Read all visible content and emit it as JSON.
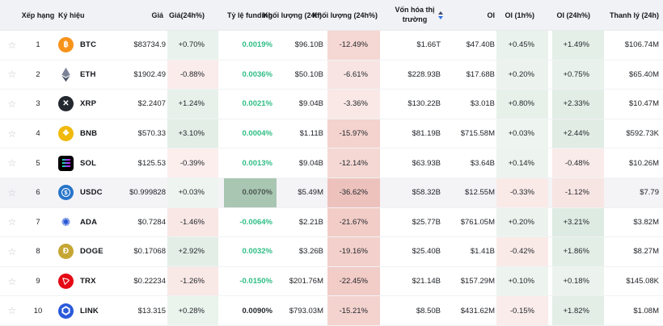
{
  "colors": {
    "green_text": "#2ebd85",
    "header_bg": "#f0f2f5",
    "highlight_row_bg": "#f4f4f7",
    "usdc_funding_bg": "#a8c6b2",
    "usdc_funding_text": "#4d574f",
    "sort_up_arrow": "#3e4a6d",
    "sort_down_arrow": "#2d6ee9",
    "star_icon": "#c3c6cb"
  },
  "icons": {
    "star": {
      "glyph": "☆"
    },
    "btc": {
      "shape": "circle",
      "bg": "#f7931a",
      "fg": "#ffffff",
      "glyph": "฿"
    },
    "eth": {
      "shape": "eth"
    },
    "xrp": {
      "shape": "circle",
      "bg": "#23292f",
      "fg": "#ffffff",
      "glyph": "✕"
    },
    "bnb": {
      "shape": "circle",
      "bg": "#f0b90b",
      "fg": "#ffffff",
      "glyph": "❖"
    },
    "sol": {
      "shape": "sol",
      "bg": "#000000"
    },
    "usdc": {
      "shape": "usdc",
      "bg": "#2775ca"
    },
    "ada": {
      "shape": "ada",
      "fg": "#2a57d3",
      "glyph": "✺"
    },
    "doge": {
      "shape": "circle",
      "bg": "#c6a633",
      "fg": "#ffffff",
      "glyph": "Ð"
    },
    "trx": {
      "shape": "trx",
      "bg": "#e50915"
    },
    "link": {
      "shape": "link",
      "bg": "#2a5ada"
    }
  },
  "table": {
    "headers": {
      "rank": "Xếp hạng",
      "symbol": "Ký hiệu",
      "price": "Giá",
      "chg24h": "Giá(24h%)",
      "funding": "Tỷ lệ funding",
      "vol24h": "Khối lượng (24h)",
      "vol24h_pct": "Khối lượng (24h%)",
      "mcap": "Vốn hóa thị trường",
      "oi": "OI",
      "oi1h": "OI (1h%)",
      "oi24h": "OI (24h%)",
      "liq24h": "Thanh lý (24h)"
    },
    "rows": [
      {
        "rank": "1",
        "coin": "btc",
        "symbol": "BTC",
        "price": "$83734.9",
        "chg": {
          "v": "+0.70%",
          "bg": "#e9f2ec"
        },
        "funding": {
          "v": "0.0019%",
          "style": "green"
        },
        "vol": "$96.10B",
        "volp": {
          "v": "-12.49%",
          "bg": "#f5d7d3"
        },
        "mcap": "$1.66T",
        "oi": "$47.40B",
        "oi1": {
          "v": "+0.45%",
          "bg": "#eaf2ed"
        },
        "oi24": {
          "v": "+1.49%",
          "bg": "#e4efe8"
        },
        "liq": "$106.74M",
        "highlight": false
      },
      {
        "rank": "2",
        "coin": "eth",
        "symbol": "ETH",
        "price": "$1902.49",
        "chg": {
          "v": "-0.88%",
          "bg": "#faeceb"
        },
        "funding": {
          "v": "0.0036%",
          "style": "green"
        },
        "vol": "$50.10B",
        "volp": {
          "v": "-6.61%",
          "bg": "#f8e5e3"
        },
        "mcap": "$228.93B",
        "oi": "$17.68B",
        "oi1": {
          "v": "+0.20%",
          "bg": "#ecf3ee"
        },
        "oi24": {
          "v": "+0.75%",
          "bg": "#e8f1eb"
        },
        "liq": "$65.40M",
        "highlight": false
      },
      {
        "rank": "3",
        "coin": "xrp",
        "symbol": "XRP",
        "price": "$2.2407",
        "chg": {
          "v": "+1.24%",
          "bg": "#e7f1ea"
        },
        "funding": {
          "v": "0.0021%",
          "style": "green"
        },
        "vol": "$9.04B",
        "volp": {
          "v": "-3.36%",
          "bg": "#f9e8e6"
        },
        "mcap": "$130.22B",
        "oi": "$3.01B",
        "oi1": {
          "v": "+0.80%",
          "bg": "#e7f1ea"
        },
        "oi24": {
          "v": "+2.33%",
          "bg": "#e1ede5"
        },
        "liq": "$10.47M",
        "highlight": false
      },
      {
        "rank": "4",
        "coin": "bnb",
        "symbol": "BNB",
        "price": "$570.33",
        "chg": {
          "v": "+3.10%",
          "bg": "#e2eee6"
        },
        "funding": {
          "v": "0.0004%",
          "style": "green"
        },
        "vol": "$1.11B",
        "volp": {
          "v": "-15.97%",
          "bg": "#f4d2ce"
        },
        "mcap": "$81.19B",
        "oi": "$715.58M",
        "oi1": {
          "v": "+0.03%",
          "bg": "#eef5f0"
        },
        "oi24": {
          "v": "+2.44%",
          "bg": "#e0ece4"
        },
        "liq": "$592.73K",
        "highlight": false
      },
      {
        "rank": "5",
        "coin": "sol",
        "symbol": "SOL",
        "price": "$125.53",
        "chg": {
          "v": "-0.39%",
          "bg": "#fbeeed"
        },
        "funding": {
          "v": "0.0013%",
          "style": "green"
        },
        "vol": "$9.04B",
        "volp": {
          "v": "-12.14%",
          "bg": "#f5d8d4"
        },
        "mcap": "$63.93B",
        "oi": "$3.64B",
        "oi1": {
          "v": "+0.14%",
          "bg": "#edf4ef"
        },
        "oi24": {
          "v": "-0.48%",
          "bg": "#f9ebe9"
        },
        "liq": "$10.26M",
        "highlight": false
      },
      {
        "rank": "6",
        "coin": "usdc",
        "symbol": "USDC",
        "price": "$0.999828",
        "chg": {
          "v": "+0.03%",
          "bg": "#eef5f0"
        },
        "funding": {
          "v": "0.0070%",
          "style": "cell",
          "bg": "#a8c6b2",
          "color": "#4d574f"
        },
        "vol": "$5.49M",
        "volp": {
          "v": "-36.62%",
          "bg": "#edc2bd"
        },
        "mcap": "$58.32B",
        "oi": "$12.55M",
        "oi1": {
          "v": "-0.33%",
          "bg": "#f9eae8"
        },
        "oi24": {
          "v": "-1.12%",
          "bg": "#f7e5e3"
        },
        "liq": "$7.79",
        "highlight": true
      },
      {
        "rank": "7",
        "coin": "ada",
        "symbol": "ADA",
        "price": "$0.7284",
        "chg": {
          "v": "-1.46%",
          "bg": "#f8e7e5"
        },
        "funding": {
          "v": "-0.0064%",
          "style": "green"
        },
        "vol": "$2.21B",
        "volp": {
          "v": "-21.67%",
          "bg": "#f2cdc8"
        },
        "mcap": "$25.77B",
        "oi": "$761.05M",
        "oi1": {
          "v": "+0.20%",
          "bg": "#ecf3ee"
        },
        "oi24": {
          "v": "+3.21%",
          "bg": "#deebe3"
        },
        "liq": "$3.82M",
        "highlight": false
      },
      {
        "rank": "8",
        "coin": "doge",
        "symbol": "DOGE",
        "price": "$0.17068",
        "chg": {
          "v": "+2.92%",
          "bg": "#e3eee7"
        },
        "funding": {
          "v": "0.0032%",
          "style": "green"
        },
        "vol": "$3.26B",
        "volp": {
          "v": "-19.16%",
          "bg": "#f3d0cb"
        },
        "mcap": "$25.40B",
        "oi": "$1.41B",
        "oi1": {
          "v": "-0.42%",
          "bg": "#f9eae8"
        },
        "oi24": {
          "v": "+1.86%",
          "bg": "#e3eee7"
        },
        "liq": "$8.27M",
        "highlight": false
      },
      {
        "rank": "9",
        "coin": "trx",
        "symbol": "TRX",
        "price": "$0.22234",
        "chg": {
          "v": "-1.26%",
          "bg": "#f8e8e6"
        },
        "funding": {
          "v": "-0.0150%",
          "style": "green"
        },
        "vol": "$201.76M",
        "volp": {
          "v": "-22.45%",
          "bg": "#f2ccc7"
        },
        "mcap": "$21.14B",
        "oi": "$157.29M",
        "oi1": {
          "v": "+0.10%",
          "bg": "#edf4ef"
        },
        "oi24": {
          "v": "+0.18%",
          "bg": "#ecf3ee"
        },
        "liq": "$145.08K",
        "highlight": false
      },
      {
        "rank": "10",
        "coin": "link",
        "symbol": "LINK",
        "price": "$13.315",
        "chg": {
          "v": "+0.28%",
          "bg": "#ebf3ed"
        },
        "funding": {
          "v": "0.0090%",
          "style": "plain"
        },
        "vol": "$793.03M",
        "volp": {
          "v": "-15.21%",
          "bg": "#f4d3cf"
        },
        "mcap": "$8.50B",
        "oi": "$431.62M",
        "oi1": {
          "v": "-0.15%",
          "bg": "#f9ecea"
        },
        "oi24": {
          "v": "+1.82%",
          "bg": "#e3eee7"
        },
        "liq": "$1.08M",
        "highlight": false
      }
    ]
  }
}
